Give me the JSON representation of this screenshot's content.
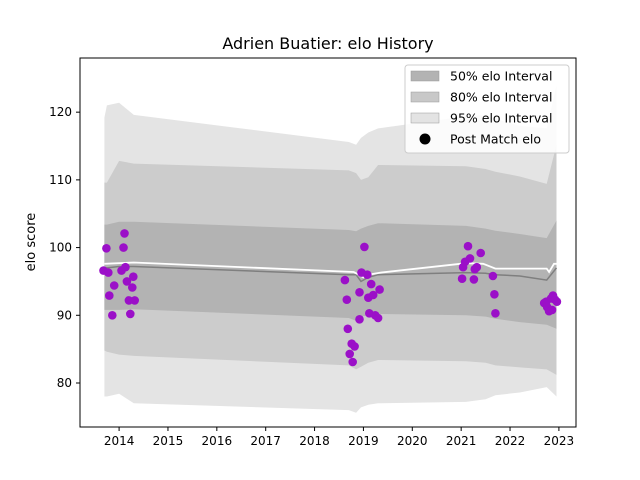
{
  "chart_data": {
    "type": "scatter",
    "title": "Adrien Buatier: elo History",
    "xlabel": "",
    "ylabel": "elo score",
    "xlim": [
      2013.2,
      2023.35
    ],
    "ylim": [
      73.5,
      128
    ],
    "x_ticks": [
      2014,
      2015,
      2016,
      2017,
      2018,
      2019,
      2020,
      2021,
      2022,
      2023
    ],
    "y_ticks": [
      80,
      90,
      100,
      110,
      120
    ],
    "grid": false,
    "legend_position": "top-right",
    "legend": [
      {
        "label": "50% elo Interval",
        "kind": "band",
        "color": "#b3b3b3"
      },
      {
        "label": "80% elo Interval",
        "kind": "band",
        "color": "#c8c8c8"
      },
      {
        "label": "95% elo Interval",
        "kind": "band",
        "color": "#e3e3e3"
      },
      {
        "label": "Post Match elo",
        "kind": "marker",
        "color": "#000000"
      }
    ],
    "colors": {
      "band50": "#b3b3b3",
      "band80": "#cccccc",
      "band95": "#e4e4e4",
      "mean_line": "#7f7f7f",
      "prior_line": "#ffffff",
      "points": "#9b10c8"
    },
    "bands": {
      "x": [
        2013.7,
        2013.75,
        2014.0,
        2014.3,
        2018.7,
        2018.85,
        2018.95,
        2019.1,
        2019.3,
        2021.1,
        2021.5,
        2021.7,
        2022.2,
        2022.75,
        2022.95
      ],
      "mean": [
        97.0,
        97.0,
        97.2,
        97.2,
        96.0,
        96.0,
        95.0,
        95.6,
        96.0,
        96.3,
        96.2,
        96.0,
        95.8,
        95.2,
        97.0
      ],
      "p50": [
        [
          90.8,
          103.4
        ],
        [
          90.8,
          103.4
        ],
        [
          90.8,
          103.8
        ],
        [
          90.9,
          103.8
        ],
        [
          89.6,
          102.6
        ],
        [
          89.2,
          102.4
        ],
        [
          89.8,
          102.8
        ],
        [
          90.0,
          103.2
        ],
        [
          90.2,
          103.6
        ],
        [
          90.0,
          103.2
        ],
        [
          89.8,
          102.8
        ],
        [
          89.5,
          102.5
        ],
        [
          89.0,
          102.0
        ],
        [
          88.6,
          101.4
        ],
        [
          88.0,
          104.0
        ]
      ],
      "p80": [
        [
          84.8,
          109.6
        ],
        [
          84.6,
          109.6
        ],
        [
          84.2,
          112.8
        ],
        [
          84.0,
          112.4
        ],
        [
          82.6,
          111.4
        ],
        [
          82.0,
          111.0
        ],
        [
          82.4,
          110.0
        ],
        [
          83.0,
          110.4
        ],
        [
          83.4,
          112.2
        ],
        [
          83.2,
          112.0
        ],
        [
          83.0,
          111.6
        ],
        [
          82.6,
          111.2
        ],
        [
          82.3,
          110.5
        ],
        [
          82.0,
          109.4
        ],
        [
          81.2,
          115.2
        ]
      ],
      "p95": [
        [
          78.0,
          119.2
        ],
        [
          78.0,
          121.0
        ],
        [
          78.4,
          121.4
        ],
        [
          77.0,
          119.6
        ],
        [
          76.0,
          115.6
        ],
        [
          75.6,
          115.2
        ],
        [
          76.4,
          116.2
        ],
        [
          76.8,
          117.0
        ],
        [
          77.0,
          117.6
        ],
        [
          77.2,
          119.4
        ],
        [
          77.6,
          119.6
        ],
        [
          78.2,
          119.0
        ],
        [
          78.6,
          118.0
        ],
        [
          79.4,
          117.6
        ],
        [
          78.0,
          124.0
        ]
      ]
    },
    "prior_line": {
      "x": [
        2013.7,
        2014.3,
        2018.8,
        2019.0,
        2019.1,
        2019.35,
        2021.1,
        2021.45,
        2021.7,
        2022.75,
        2022.8,
        2022.9,
        2022.95
      ],
      "y": [
        97.6,
        97.8,
        96.4,
        95.6,
        96.0,
        96.3,
        97.7,
        97.6,
        96.9,
        96.9,
        96.4,
        97.6,
        97.6
      ]
    },
    "points": [
      {
        "x": 2013.68,
        "y": 96.6
      },
      {
        "x": 2013.74,
        "y": 99.9
      },
      {
        "x": 2013.78,
        "y": 96.3
      },
      {
        "x": 2013.8,
        "y": 92.9
      },
      {
        "x": 2013.86,
        "y": 90.0
      },
      {
        "x": 2013.9,
        "y": 94.4
      },
      {
        "x": 2014.05,
        "y": 96.6
      },
      {
        "x": 2014.09,
        "y": 100.0
      },
      {
        "x": 2014.11,
        "y": 102.1
      },
      {
        "x": 2014.13,
        "y": 97.1
      },
      {
        "x": 2014.16,
        "y": 95.0
      },
      {
        "x": 2014.2,
        "y": 92.2
      },
      {
        "x": 2014.23,
        "y": 90.2
      },
      {
        "x": 2014.27,
        "y": 94.1
      },
      {
        "x": 2014.29,
        "y": 95.7
      },
      {
        "x": 2014.32,
        "y": 92.2
      },
      {
        "x": 2018.62,
        "y": 95.2
      },
      {
        "x": 2018.66,
        "y": 92.3
      },
      {
        "x": 2018.68,
        "y": 88.0
      },
      {
        "x": 2018.72,
        "y": 84.3
      },
      {
        "x": 2018.76,
        "y": 85.8
      },
      {
        "x": 2018.78,
        "y": 83.1
      },
      {
        "x": 2018.82,
        "y": 85.4
      },
      {
        "x": 2018.92,
        "y": 93.4
      },
      {
        "x": 2018.92,
        "y": 89.4
      },
      {
        "x": 2018.96,
        "y": 96.3
      },
      {
        "x": 2019.02,
        "y": 100.1
      },
      {
        "x": 2019.08,
        "y": 96.0
      },
      {
        "x": 2019.1,
        "y": 92.6
      },
      {
        "x": 2019.12,
        "y": 90.3
      },
      {
        "x": 2019.16,
        "y": 94.6
      },
      {
        "x": 2019.2,
        "y": 93.0
      },
      {
        "x": 2019.24,
        "y": 90.0
      },
      {
        "x": 2019.3,
        "y": 89.6
      },
      {
        "x": 2019.33,
        "y": 93.8
      },
      {
        "x": 2021.02,
        "y": 95.4
      },
      {
        "x": 2021.04,
        "y": 97.1
      },
      {
        "x": 2021.08,
        "y": 97.9
      },
      {
        "x": 2021.14,
        "y": 100.2
      },
      {
        "x": 2021.18,
        "y": 98.4
      },
      {
        "x": 2021.26,
        "y": 95.3
      },
      {
        "x": 2021.28,
        "y": 96.8
      },
      {
        "x": 2021.32,
        "y": 97.1
      },
      {
        "x": 2021.4,
        "y": 99.2
      },
      {
        "x": 2021.65,
        "y": 95.8
      },
      {
        "x": 2021.68,
        "y": 93.1
      },
      {
        "x": 2021.7,
        "y": 90.3
      },
      {
        "x": 2022.7,
        "y": 91.8
      },
      {
        "x": 2022.74,
        "y": 92.0
      },
      {
        "x": 2022.76,
        "y": 91.2
      },
      {
        "x": 2022.8,
        "y": 90.6
      },
      {
        "x": 2022.84,
        "y": 92.5
      },
      {
        "x": 2022.86,
        "y": 90.8
      },
      {
        "x": 2022.88,
        "y": 92.9
      },
      {
        "x": 2022.92,
        "y": 92.3
      },
      {
        "x": 2022.96,
        "y": 92.0
      }
    ]
  }
}
